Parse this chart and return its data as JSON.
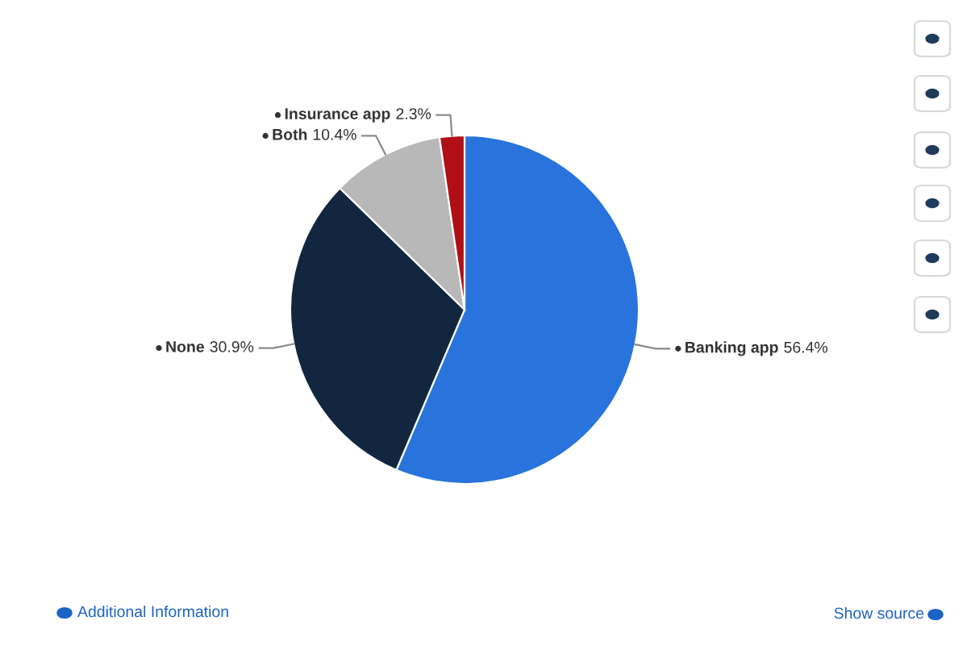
{
  "chart_data": {
    "type": "pie",
    "categories": [
      "Banking app",
      "None",
      "Both",
      "Insurance app"
    ],
    "values": [
      56.4,
      30.9,
      10.4,
      2.3
    ],
    "value_labels": [
      "56.4%",
      "30.9%",
      "10.4%",
      "2.3%"
    ],
    "colors": [
      "#2874dc",
      "#12263f",
      "#b8b8b8",
      "#b00f16"
    ],
    "legend": false,
    "annotations": [
      "Additional Information",
      "Show source"
    ]
  }
}
